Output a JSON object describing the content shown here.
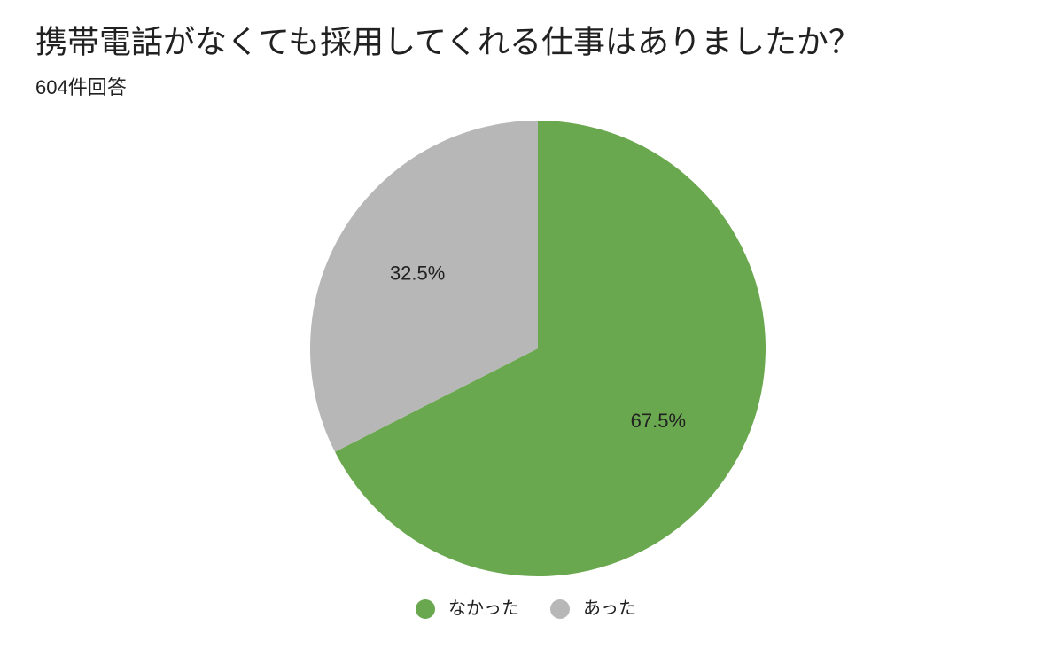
{
  "chart_data": {
    "type": "pie",
    "title": "携帯電話がなくても採用してくれる仕事はありましたか？",
    "subtitle": "604件回答",
    "categories": [
      "なかった",
      "あった"
    ],
    "values": [
      67.5,
      32.5
    ],
    "value_labels": [
      "67.5%",
      "32.5%"
    ],
    "colors": [
      "#6aa84f",
      "#b7b7b7"
    ]
  }
}
